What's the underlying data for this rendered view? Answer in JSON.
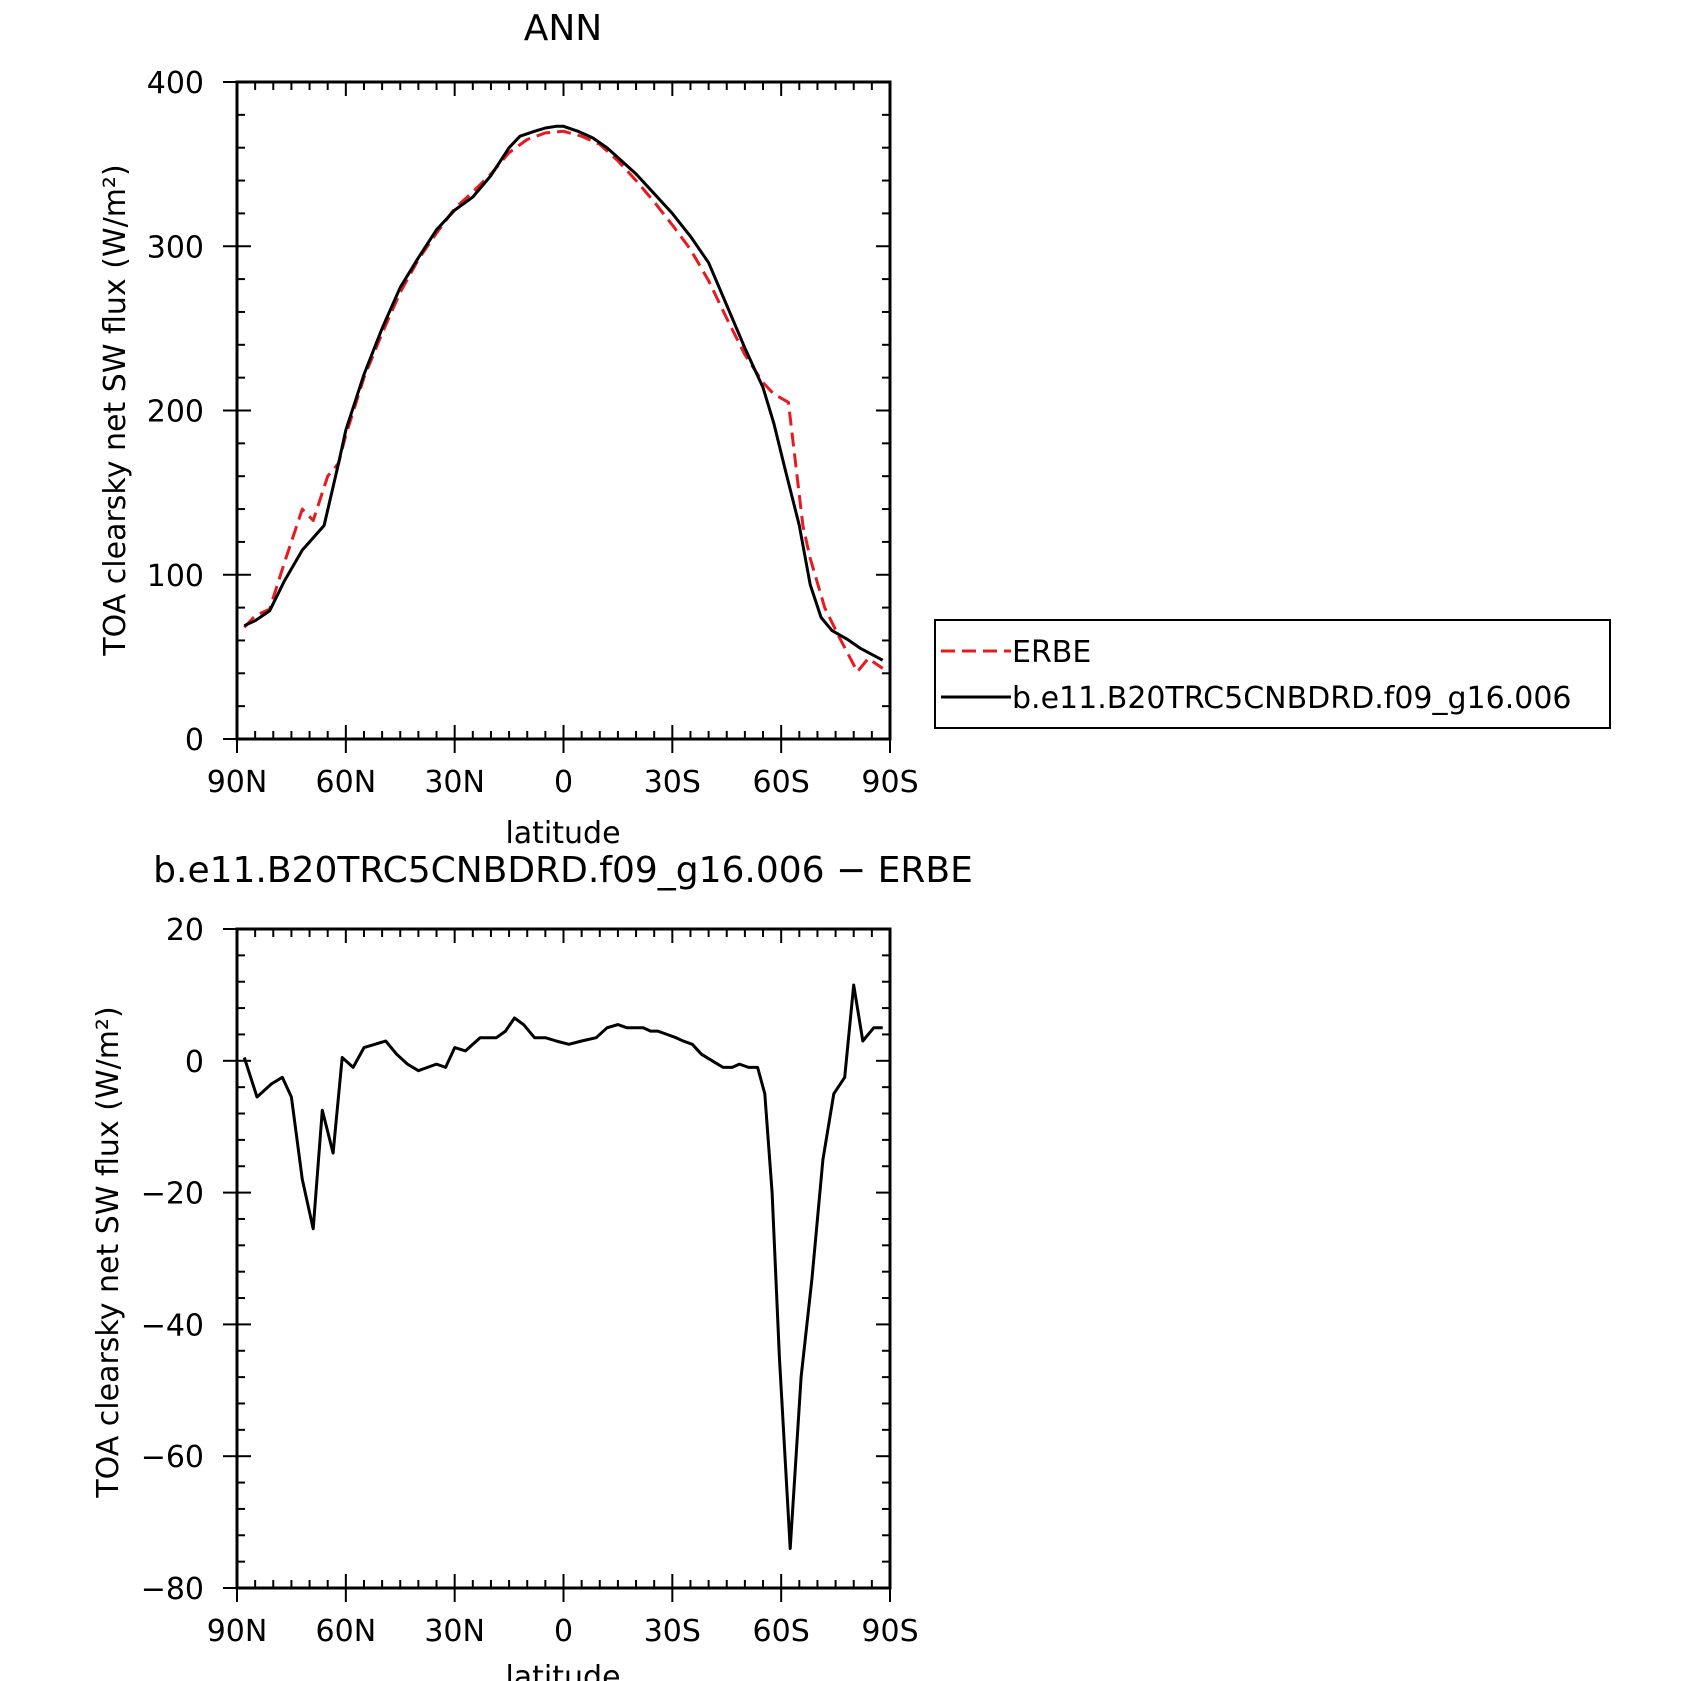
{
  "chart_data": [
    {
      "type": "line",
      "title": "ANN",
      "xlabel": "latitude",
      "ylabel": "TOA clearsky net SW flux (W/m²)",
      "x_direction": "90N to 90S",
      "xlim": [
        90,
        -90
      ],
      "ylim": [
        0,
        400
      ],
      "x_ticks": [
        90,
        60,
        30,
        0,
        -30,
        -60,
        -90
      ],
      "x_tick_labels": [
        "90N",
        "60N",
        "30N",
        "0",
        "30S",
        "60S",
        "90S"
      ],
      "y_ticks": [
        0,
        100,
        200,
        300,
        400
      ],
      "y_tick_labels": [
        "0",
        "100",
        "200",
        "300",
        "400"
      ],
      "grid": false,
      "legend_position": "right-outside",
      "series": [
        {
          "name": "ERBE",
          "color": "#e8191f",
          "dash": "dashed",
          "x": [
            88,
            85,
            81,
            77,
            72,
            69,
            65,
            62,
            60,
            55,
            50,
            45,
            40,
            35,
            30,
            25,
            20,
            15,
            10,
            5,
            0,
            -5,
            -10,
            -15,
            -20,
            -25,
            -30,
            -35,
            -40,
            -45,
            -50,
            -55,
            -58,
            -62,
            -66,
            -68,
            -72,
            -76,
            -81,
            -84,
            -88
          ],
          "y": [
            68,
            75,
            79,
            107,
            140,
            133,
            160,
            168,
            185,
            220,
            247,
            272,
            292,
            308,
            323,
            333,
            344,
            357,
            365,
            369,
            370,
            367,
            362,
            352,
            340,
            327,
            313,
            298,
            279,
            256,
            234,
            217,
            210,
            205,
            130,
            110,
            80,
            62,
            41,
            49,
            43
          ]
        },
        {
          "name": "b.e11.B20TRC5CNBDRD.f09_g16.006",
          "color": "#000000",
          "dash": "solid",
          "x": [
            88,
            85,
            81,
            77,
            72,
            66,
            62,
            60,
            55,
            50,
            45,
            40,
            35,
            30,
            25,
            20,
            15,
            12,
            8,
            5,
            2,
            0,
            -4,
            -8,
            -12,
            -16,
            -20,
            -25,
            -30,
            -35,
            -40,
            -45,
            -50,
            -55,
            -58,
            -61,
            -65,
            -68,
            -71,
            -74,
            -78,
            -82,
            -88
          ],
          "y": [
            69,
            72,
            78,
            96,
            115,
            130,
            168,
            188,
            222,
            250,
            275,
            293,
            310,
            322,
            330,
            343,
            360,
            367,
            370,
            372,
            373,
            373,
            370,
            366,
            360,
            352,
            344,
            332,
            320,
            306,
            290,
            264,
            238,
            214,
            192,
            165,
            130,
            94,
            74,
            66,
            61,
            55,
            48
          ]
        }
      ]
    },
    {
      "type": "line",
      "title": "b.e11.B20TRC5CNBDRD.f09_g16.006 − ERBE",
      "xlabel": "latitude",
      "ylabel": "TOA clearsky net SW flux (W/m²)",
      "x_direction": "90N to 90S",
      "xlim": [
        90,
        -90
      ],
      "ylim": [
        -80,
        20
      ],
      "x_ticks": [
        90,
        60,
        30,
        0,
        -30,
        -60,
        -90
      ],
      "x_tick_labels": [
        "90N",
        "60N",
        "30N",
        "0",
        "30S",
        "60S",
        "90S"
      ],
      "y_ticks": [
        -80,
        -60,
        -40,
        -20,
        0,
        20
      ],
      "y_tick_labels": [
        "−80",
        "−60",
        "−40",
        "−20",
        "0",
        "20"
      ],
      "grid": false,
      "series": [
        {
          "color": "#000000",
          "dash": "solid",
          "x": [
            88,
            84.5,
            80.5,
            77.5,
            75,
            72,
            69,
            66.5,
            63.5,
            61,
            58,
            55,
            52,
            49,
            46,
            43,
            40,
            37.5,
            35,
            32.5,
            30,
            27,
            23,
            20.5,
            18.5,
            16,
            13.5,
            11,
            8,
            5,
            2,
            -1.5,
            -5,
            -9,
            -12,
            -15,
            -17.5,
            -20,
            -22,
            -24,
            -26,
            -28.5,
            -31,
            -33,
            -35.5,
            -38,
            -41,
            -44,
            -46.5,
            -48.5,
            -51,
            -53.5,
            -55.5,
            -57.5,
            -59.5,
            -62.5,
            -65.5,
            -68.5,
            -71.5,
            -74.5,
            -77.5,
            -80,
            -82.5,
            -85.5,
            -88
          ],
          "y": [
            0.5,
            -5.5,
            -3.5,
            -2.5,
            -5.5,
            -18,
            -25.5,
            -7.5,
            -14,
            0.5,
            -1,
            2,
            2.5,
            3,
            1,
            -0.5,
            -1.5,
            -1,
            -0.5,
            -1,
            2,
            1.5,
            3.5,
            3.5,
            3.5,
            4.5,
            6.5,
            5.5,
            3.5,
            3.5,
            3,
            2.5,
            3,
            3.5,
            5,
            5.5,
            5,
            5,
            5,
            4.5,
            4.5,
            4,
            3.5,
            3,
            2.5,
            1,
            0,
            -1,
            -1,
            -0.5,
            -1,
            -1,
            -5,
            -20,
            -45,
            -74,
            -48,
            -33,
            -15,
            -5,
            -2.5,
            11.5,
            3,
            5,
            5
          ]
        }
      ]
    }
  ]
}
